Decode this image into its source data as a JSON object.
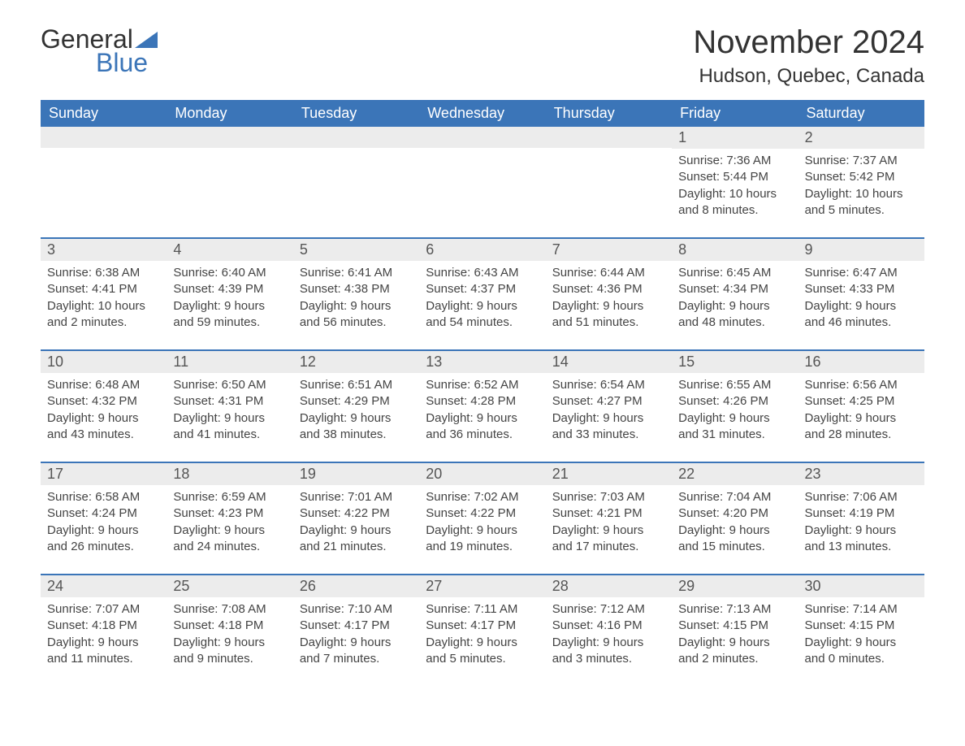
{
  "logo": {
    "text_general": "General",
    "text_blue": "Blue",
    "triangle_color": "#3b75b8"
  },
  "title": "November 2024",
  "location": "Hudson, Quebec, Canada",
  "colors": {
    "header_bg": "#3b75b8",
    "header_text": "#ffffff",
    "day_number_bg": "#ececec",
    "day_number_text": "#555555",
    "body_text": "#444444",
    "border": "#3b75b8",
    "page_bg": "#ffffff"
  },
  "weekdays": [
    "Sunday",
    "Monday",
    "Tuesday",
    "Wednesday",
    "Thursday",
    "Friday",
    "Saturday"
  ],
  "weeks": [
    [
      null,
      null,
      null,
      null,
      null,
      {
        "num": "1",
        "sunrise": "Sunrise: 7:36 AM",
        "sunset": "Sunset: 5:44 PM",
        "daylight1": "Daylight: 10 hours",
        "daylight2": "and 8 minutes."
      },
      {
        "num": "2",
        "sunrise": "Sunrise: 7:37 AM",
        "sunset": "Sunset: 5:42 PM",
        "daylight1": "Daylight: 10 hours",
        "daylight2": "and 5 minutes."
      }
    ],
    [
      {
        "num": "3",
        "sunrise": "Sunrise: 6:38 AM",
        "sunset": "Sunset: 4:41 PM",
        "daylight1": "Daylight: 10 hours",
        "daylight2": "and 2 minutes."
      },
      {
        "num": "4",
        "sunrise": "Sunrise: 6:40 AM",
        "sunset": "Sunset: 4:39 PM",
        "daylight1": "Daylight: 9 hours",
        "daylight2": "and 59 minutes."
      },
      {
        "num": "5",
        "sunrise": "Sunrise: 6:41 AM",
        "sunset": "Sunset: 4:38 PM",
        "daylight1": "Daylight: 9 hours",
        "daylight2": "and 56 minutes."
      },
      {
        "num": "6",
        "sunrise": "Sunrise: 6:43 AM",
        "sunset": "Sunset: 4:37 PM",
        "daylight1": "Daylight: 9 hours",
        "daylight2": "and 54 minutes."
      },
      {
        "num": "7",
        "sunrise": "Sunrise: 6:44 AM",
        "sunset": "Sunset: 4:36 PM",
        "daylight1": "Daylight: 9 hours",
        "daylight2": "and 51 minutes."
      },
      {
        "num": "8",
        "sunrise": "Sunrise: 6:45 AM",
        "sunset": "Sunset: 4:34 PM",
        "daylight1": "Daylight: 9 hours",
        "daylight2": "and 48 minutes."
      },
      {
        "num": "9",
        "sunrise": "Sunrise: 6:47 AM",
        "sunset": "Sunset: 4:33 PM",
        "daylight1": "Daylight: 9 hours",
        "daylight2": "and 46 minutes."
      }
    ],
    [
      {
        "num": "10",
        "sunrise": "Sunrise: 6:48 AM",
        "sunset": "Sunset: 4:32 PM",
        "daylight1": "Daylight: 9 hours",
        "daylight2": "and 43 minutes."
      },
      {
        "num": "11",
        "sunrise": "Sunrise: 6:50 AM",
        "sunset": "Sunset: 4:31 PM",
        "daylight1": "Daylight: 9 hours",
        "daylight2": "and 41 minutes."
      },
      {
        "num": "12",
        "sunrise": "Sunrise: 6:51 AM",
        "sunset": "Sunset: 4:29 PM",
        "daylight1": "Daylight: 9 hours",
        "daylight2": "and 38 minutes."
      },
      {
        "num": "13",
        "sunrise": "Sunrise: 6:52 AM",
        "sunset": "Sunset: 4:28 PM",
        "daylight1": "Daylight: 9 hours",
        "daylight2": "and 36 minutes."
      },
      {
        "num": "14",
        "sunrise": "Sunrise: 6:54 AM",
        "sunset": "Sunset: 4:27 PM",
        "daylight1": "Daylight: 9 hours",
        "daylight2": "and 33 minutes."
      },
      {
        "num": "15",
        "sunrise": "Sunrise: 6:55 AM",
        "sunset": "Sunset: 4:26 PM",
        "daylight1": "Daylight: 9 hours",
        "daylight2": "and 31 minutes."
      },
      {
        "num": "16",
        "sunrise": "Sunrise: 6:56 AM",
        "sunset": "Sunset: 4:25 PM",
        "daylight1": "Daylight: 9 hours",
        "daylight2": "and 28 minutes."
      }
    ],
    [
      {
        "num": "17",
        "sunrise": "Sunrise: 6:58 AM",
        "sunset": "Sunset: 4:24 PM",
        "daylight1": "Daylight: 9 hours",
        "daylight2": "and 26 minutes."
      },
      {
        "num": "18",
        "sunrise": "Sunrise: 6:59 AM",
        "sunset": "Sunset: 4:23 PM",
        "daylight1": "Daylight: 9 hours",
        "daylight2": "and 24 minutes."
      },
      {
        "num": "19",
        "sunrise": "Sunrise: 7:01 AM",
        "sunset": "Sunset: 4:22 PM",
        "daylight1": "Daylight: 9 hours",
        "daylight2": "and 21 minutes."
      },
      {
        "num": "20",
        "sunrise": "Sunrise: 7:02 AM",
        "sunset": "Sunset: 4:22 PM",
        "daylight1": "Daylight: 9 hours",
        "daylight2": "and 19 minutes."
      },
      {
        "num": "21",
        "sunrise": "Sunrise: 7:03 AM",
        "sunset": "Sunset: 4:21 PM",
        "daylight1": "Daylight: 9 hours",
        "daylight2": "and 17 minutes."
      },
      {
        "num": "22",
        "sunrise": "Sunrise: 7:04 AM",
        "sunset": "Sunset: 4:20 PM",
        "daylight1": "Daylight: 9 hours",
        "daylight2": "and 15 minutes."
      },
      {
        "num": "23",
        "sunrise": "Sunrise: 7:06 AM",
        "sunset": "Sunset: 4:19 PM",
        "daylight1": "Daylight: 9 hours",
        "daylight2": "and 13 minutes."
      }
    ],
    [
      {
        "num": "24",
        "sunrise": "Sunrise: 7:07 AM",
        "sunset": "Sunset: 4:18 PM",
        "daylight1": "Daylight: 9 hours",
        "daylight2": "and 11 minutes."
      },
      {
        "num": "25",
        "sunrise": "Sunrise: 7:08 AM",
        "sunset": "Sunset: 4:18 PM",
        "daylight1": "Daylight: 9 hours",
        "daylight2": "and 9 minutes."
      },
      {
        "num": "26",
        "sunrise": "Sunrise: 7:10 AM",
        "sunset": "Sunset: 4:17 PM",
        "daylight1": "Daylight: 9 hours",
        "daylight2": "and 7 minutes."
      },
      {
        "num": "27",
        "sunrise": "Sunrise: 7:11 AM",
        "sunset": "Sunset: 4:17 PM",
        "daylight1": "Daylight: 9 hours",
        "daylight2": "and 5 minutes."
      },
      {
        "num": "28",
        "sunrise": "Sunrise: 7:12 AM",
        "sunset": "Sunset: 4:16 PM",
        "daylight1": "Daylight: 9 hours",
        "daylight2": "and 3 minutes."
      },
      {
        "num": "29",
        "sunrise": "Sunrise: 7:13 AM",
        "sunset": "Sunset: 4:15 PM",
        "daylight1": "Daylight: 9 hours",
        "daylight2": "and 2 minutes."
      },
      {
        "num": "30",
        "sunrise": "Sunrise: 7:14 AM",
        "sunset": "Sunset: 4:15 PM",
        "daylight1": "Daylight: 9 hours",
        "daylight2": "and 0 minutes."
      }
    ]
  ]
}
